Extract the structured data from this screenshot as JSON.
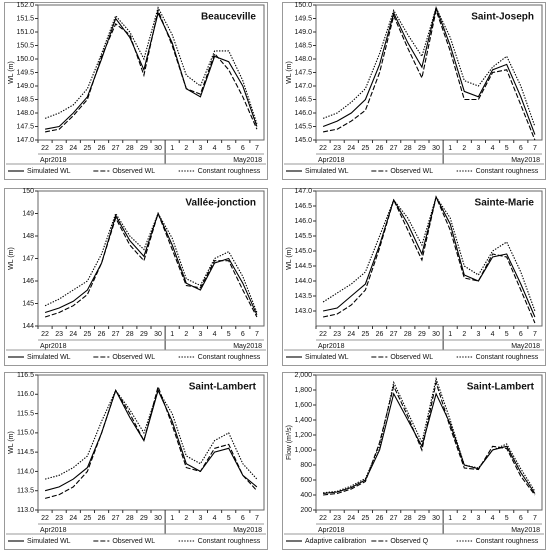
{
  "chart_data": [
    {
      "type": "line",
      "title": "Beauceville",
      "y_label": "WL (m)",
      "categories": [
        "22",
        "23",
        "24",
        "25",
        "26",
        "27",
        "28",
        "29",
        "30",
        "1",
        "2",
        "3",
        "4",
        "5",
        "6",
        "7"
      ],
      "x_annotations": [
        "Apr2018",
        "May2018"
      ],
      "ylim": [
        147,
        152
      ],
      "yticks": [
        {
          "value": 147,
          "label": "147.0"
        },
        {
          "value": 147.5,
          "label": "147.5"
        },
        {
          "value": 148,
          "label": "148.0"
        },
        {
          "value": 148.5,
          "label": "148.5"
        },
        {
          "value": 149,
          "label": "149.0"
        },
        {
          "value": 149.5,
          "label": "149.5"
        },
        {
          "value": 150,
          "label": "150.0"
        },
        {
          "value": 150.5,
          "label": "150.5"
        },
        {
          "value": 151,
          "label": "151.0"
        },
        {
          "value": 151.5,
          "label": "151.5"
        },
        {
          "value": 152,
          "label": "152.0"
        }
      ],
      "series": [
        {
          "name": "Simulated WL",
          "color": "#000000",
          "dash": "solid",
          "values": [
            147.4,
            147.5,
            148.0,
            148.6,
            150.0,
            151.5,
            150.8,
            149.6,
            151.7,
            150.6,
            148.9,
            148.6,
            150.1,
            149.9,
            149.0,
            147.5
          ]
        },
        {
          "name": "Observed WL",
          "color": "#000000",
          "dash": "dashed",
          "values": [
            147.3,
            147.4,
            147.9,
            148.5,
            150.1,
            151.3,
            150.9,
            149.4,
            151.8,
            150.5,
            148.9,
            148.7,
            150.2,
            149.6,
            148.6,
            147.4
          ]
        },
        {
          "name": "Constant roughness",
          "color": "#000000",
          "dash": "dotted",
          "values": [
            147.8,
            148.0,
            148.3,
            148.9,
            150.2,
            151.6,
            151.0,
            150.0,
            151.9,
            150.9,
            149.4,
            149.0,
            150.3,
            150.3,
            149.2,
            147.6
          ]
        }
      ]
    },
    {
      "type": "line",
      "title": "Saint-Joseph",
      "y_label": "WL (m)",
      "categories": [
        "22",
        "23",
        "24",
        "25",
        "26",
        "27",
        "28",
        "29",
        "30",
        "1",
        "2",
        "3",
        "4",
        "5",
        "6",
        "7"
      ],
      "x_annotations": [
        "Apr2018",
        "May2018"
      ],
      "ylim": [
        145,
        150
      ],
      "yticks": [
        {
          "value": 145,
          "label": "145.0"
        },
        {
          "value": 145.5,
          "label": "145.5"
        },
        {
          "value": 146,
          "label": "146.0"
        },
        {
          "value": 146.5,
          "label": "146.5"
        },
        {
          "value": 147,
          "label": "147.0"
        },
        {
          "value": 147.5,
          "label": "147.5"
        },
        {
          "value": 148,
          "label": "148.0"
        },
        {
          "value": 148.5,
          "label": "148.5"
        },
        {
          "value": 149,
          "label": "149.0"
        },
        {
          "value": 149.5,
          "label": "149.5"
        },
        {
          "value": 150,
          "label": "150.0"
        }
      ],
      "series": [
        {
          "name": "Simulated WL",
          "color": "#000000",
          "dash": "solid",
          "values": [
            145.5,
            145.7,
            146.0,
            146.5,
            147.8,
            149.7,
            148.6,
            147.7,
            149.9,
            148.5,
            146.8,
            146.6,
            147.6,
            147.8,
            146.6,
            145.2
          ]
        },
        {
          "name": "Observed WL",
          "color": "#000000",
          "dash": "dashed",
          "values": [
            145.3,
            145.4,
            145.7,
            146.1,
            147.5,
            149.6,
            148.4,
            147.3,
            149.8,
            148.3,
            146.5,
            146.5,
            147.5,
            147.6,
            146.3,
            145.0
          ]
        },
        {
          "name": "Constant roughness",
          "color": "#000000",
          "dash": "dotted",
          "values": [
            145.8,
            146.0,
            146.4,
            146.9,
            148.2,
            149.8,
            148.9,
            148.1,
            149.9,
            148.8,
            147.2,
            147.0,
            147.7,
            148.1,
            147.0,
            145.5
          ]
        }
      ]
    },
    {
      "type": "line",
      "title": "Vallée-jonction",
      "y_label": "WL (m)",
      "categories": [
        "22",
        "23",
        "24",
        "25",
        "26",
        "27",
        "28",
        "29",
        "30",
        "1",
        "2",
        "3",
        "4",
        "5",
        "6",
        "7"
      ],
      "x_annotations": [
        "Apr2018",
        "May2018"
      ],
      "ylim": [
        144,
        150
      ],
      "yticks": [
        144,
        145,
        146,
        147,
        148,
        149,
        150
      ],
      "series": [
        {
          "name": "Simulated WL",
          "color": "#000000",
          "dash": "solid",
          "values": [
            144.6,
            144.8,
            145.1,
            145.6,
            146.8,
            148.9,
            147.8,
            147.1,
            149.0,
            147.6,
            145.9,
            145.6,
            146.8,
            147.0,
            145.9,
            144.5
          ]
        },
        {
          "name": "Observed WL",
          "color": "#000000",
          "dash": "dashed",
          "values": [
            144.4,
            144.6,
            144.9,
            145.4,
            146.8,
            148.8,
            147.6,
            146.9,
            149.0,
            147.4,
            145.8,
            145.7,
            146.9,
            146.9,
            145.6,
            144.4
          ]
        },
        {
          "name": "Constant roughness",
          "color": "#000000",
          "dash": "dotted",
          "values": [
            144.9,
            145.2,
            145.6,
            146.0,
            147.2,
            149.0,
            148.0,
            147.4,
            149.0,
            147.9,
            146.1,
            145.8,
            147.0,
            147.3,
            146.2,
            144.6
          ]
        }
      ]
    },
    {
      "type": "line",
      "title": "Sainte-Marie",
      "y_label": "WL (m)",
      "categories": [
        "22",
        "23",
        "24",
        "25",
        "26",
        "27",
        "28",
        "29",
        "30",
        "1",
        "2",
        "3",
        "4",
        "5",
        "6",
        "7"
      ],
      "x_annotations": [
        "Apr2018",
        "May2018"
      ],
      "ylim": [
        142.5,
        147
      ],
      "yticks": [
        {
          "value": 143,
          "label": "143.0"
        },
        {
          "value": 143.5,
          "label": "143.5"
        },
        {
          "value": 144,
          "label": "144.0"
        },
        {
          "value": 144.5,
          "label": "144.5"
        },
        {
          "value": 145,
          "label": "145.0"
        },
        {
          "value": 145.5,
          "label": "145.5"
        },
        {
          "value": 146,
          "label": "146.0"
        },
        {
          "value": 146.5,
          "label": "146.5"
        },
        {
          "value": 147,
          "label": "147.0"
        }
      ],
      "series": [
        {
          "name": "Simulated WL",
          "color": "#000000",
          "dash": "solid",
          "values": [
            143.0,
            143.1,
            143.5,
            143.9,
            145.2,
            146.7,
            145.9,
            144.9,
            146.8,
            145.9,
            144.2,
            144.0,
            144.8,
            144.9,
            143.9,
            142.8
          ]
        },
        {
          "name": "Observed WL",
          "color": "#000000",
          "dash": "dashed",
          "values": [
            142.8,
            142.9,
            143.2,
            143.7,
            145.1,
            146.7,
            145.7,
            144.7,
            146.8,
            145.7,
            144.1,
            144.0,
            144.9,
            144.8,
            143.7,
            142.6
          ]
        },
        {
          "name": "Constant roughness",
          "color": "#000000",
          "dash": "dotted",
          "values": [
            143.3,
            143.6,
            143.9,
            144.3,
            145.5,
            146.7,
            146.1,
            145.2,
            146.8,
            146.1,
            144.5,
            144.2,
            145.0,
            145.3,
            144.3,
            143.0
          ]
        }
      ]
    },
    {
      "type": "line",
      "title": "Saint-Lambert",
      "y_label": "WL (m)",
      "categories": [
        "22",
        "23",
        "24",
        "25",
        "26",
        "27",
        "28",
        "29",
        "30",
        "1",
        "2",
        "3",
        "4",
        "5",
        "6",
        "7"
      ],
      "x_annotations": [
        "Apr2018",
        "May2018"
      ],
      "ylim": [
        113,
        116.5
      ],
      "yticks": [
        {
          "value": 113,
          "label": "113.0"
        },
        {
          "value": 113.5,
          "label": "113.5"
        },
        {
          "value": 114,
          "label": "114.0"
        },
        {
          "value": 114.5,
          "label": "114.5"
        },
        {
          "value": 115,
          "label": "115.0"
        },
        {
          "value": 115.5,
          "label": "115.5"
        },
        {
          "value": 116,
          "label": "116.0"
        },
        {
          "value": 116.5,
          "label": "116.5"
        }
      ],
      "series": [
        {
          "name": "Simulated WL",
          "color": "#000000",
          "dash": "solid",
          "values": [
            113.5,
            113.6,
            113.8,
            114.1,
            115.0,
            116.1,
            115.4,
            114.8,
            116.1,
            115.3,
            114.2,
            114.0,
            114.5,
            114.6,
            113.9,
            113.6
          ]
        },
        {
          "name": "Observed WL",
          "color": "#000000",
          "dash": "dashed",
          "values": [
            113.3,
            113.4,
            113.6,
            114.0,
            115.0,
            116.1,
            115.5,
            114.8,
            116.2,
            115.2,
            114.1,
            114.0,
            114.6,
            114.7,
            113.9,
            113.5
          ]
        },
        {
          "name": "Constant roughness",
          "color": "#000000",
          "dash": "dotted",
          "values": [
            113.8,
            113.9,
            114.1,
            114.4,
            115.3,
            116.1,
            115.6,
            115.0,
            116.1,
            115.5,
            114.4,
            114.2,
            114.8,
            115.0,
            114.2,
            113.8
          ]
        }
      ]
    },
    {
      "type": "line",
      "title": "Saint-Lambert",
      "y_label": "Flow (m³/s)",
      "categories": [
        "22",
        "23",
        "24",
        "25",
        "26",
        "27",
        "28",
        "29",
        "30",
        "1",
        "2",
        "3",
        "4",
        "5",
        "6",
        "7"
      ],
      "x_annotations": [
        "Apr2018",
        "May2018"
      ],
      "ylim": [
        200,
        2000
      ],
      "yticks": [
        200,
        400,
        600,
        800,
        {
          "value": 1000,
          "label": "1,000"
        },
        {
          "value": 1200,
          "label": "1,200"
        },
        {
          "value": 1400,
          "label": "1,400"
        },
        {
          "value": 1600,
          "label": "1,600"
        },
        {
          "value": 1800,
          "label": "1,800"
        },
        {
          "value": 2000,
          "label": "2,000"
        }
      ],
      "series": [
        {
          "name": "Adaptive calibration",
          "color": "#000000",
          "dash": "solid",
          "values": [
            420,
            440,
            500,
            600,
            1000,
            1750,
            1400,
            1050,
            1750,
            1350,
            800,
            750,
            1000,
            1050,
            700,
            420
          ]
        },
        {
          "name": "Observed Q",
          "color": "#000000",
          "dash": "dashed",
          "values": [
            400,
            420,
            480,
            580,
            1100,
            1850,
            1450,
            1000,
            1900,
            1300,
            760,
            740,
            1050,
            1020,
            650,
            400
          ]
        },
        {
          "name": "Constant roughness",
          "color": "#000000",
          "dash": "dotted",
          "values": [
            430,
            450,
            520,
            620,
            1050,
            1900,
            1500,
            1100,
            1950,
            1400,
            800,
            760,
            1000,
            1080,
            750,
            450
          ]
        }
      ]
    }
  ]
}
